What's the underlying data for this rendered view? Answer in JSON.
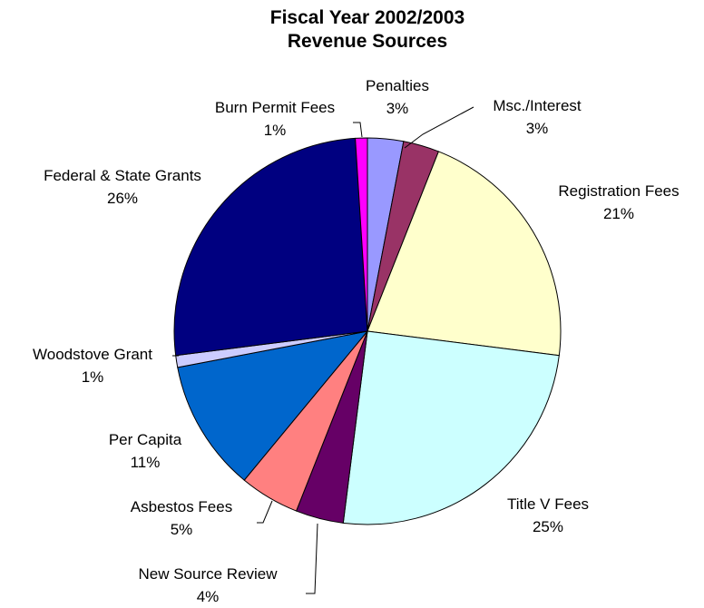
{
  "chart_data": {
    "type": "pie",
    "title": [
      "Fiscal Year 2002/2003",
      "Revenue Sources"
    ],
    "slices": [
      {
        "name": "Penalties",
        "label_value": "3%",
        "value": 3,
        "color": "#9999FF"
      },
      {
        "name": "Msc./Interest",
        "label_value": "3%",
        "value": 3,
        "color": "#993366"
      },
      {
        "name": "Registration Fees",
        "label_value": "21%",
        "value": 21,
        "color": "#FFFFCC"
      },
      {
        "name": "Title V Fees",
        "label_value": "25%",
        "value": 25,
        "color": "#CCFFFF"
      },
      {
        "name": "New Source Review",
        "label_value": "4%",
        "value": 4,
        "color": "#660066"
      },
      {
        "name": "Asbestos Fees",
        "label_value": "5%",
        "value": 5,
        "color": "#FF8080"
      },
      {
        "name": "Per Capita",
        "label_value": "11%",
        "value": 11,
        "color": "#0066CC"
      },
      {
        "name": "Woodstove Grant",
        "label_value": "1%",
        "value": 1,
        "color": "#CCCCFF"
      },
      {
        "name": "Federal & State Grants",
        "label_value": "26%",
        "value": 26,
        "color": "#000080"
      },
      {
        "name": "Burn Permit Fees",
        "label_value": "1%",
        "value": 1,
        "color": "#FF00FF"
      }
    ]
  }
}
